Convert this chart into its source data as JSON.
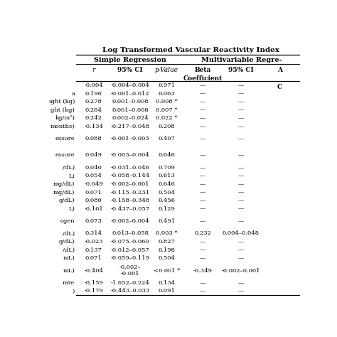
{
  "title": "Log Transformed Vascular Reactivity Index",
  "simple_regression_label": "Simple Regression",
  "multivariable_label": "Multivariable Regre-",
  "col_header_labels": [
    "r",
    "95% CI",
    "p-Value",
    "Beta\nCoefficient",
    "95% CI",
    "A\n\nC"
  ],
  "col_header_italic": [
    true,
    false,
    true,
    false,
    false,
    false
  ],
  "row_labels": [
    "",
    "a",
    "ight (kg)",
    "ght (kg)",
    "kg/m²)",
    "months)",
    "essure",
    "essure",
    "/dL)",
    "L)",
    "mg/dL)",
    "mg/dL)",
    "g/dL)",
    "L)",
    "ogen",
    "/dL)",
    "g/dL)",
    "/dL)",
    "mL)",
    "mL)",
    "rate",
    ")"
  ],
  "rows": [
    [
      "-0.004",
      "-0.004–0.004",
      "0.971",
      "—",
      "—",
      ""
    ],
    [
      "0.196",
      "-0.001–0.012",
      "0.063",
      "—",
      "—",
      ""
    ],
    [
      "0.278",
      "0.001–0.008",
      "0.008 *",
      "—",
      "—",
      ""
    ],
    [
      "0.284",
      "0.001–0.008",
      "0.007 *",
      "—",
      "—",
      ""
    ],
    [
      "0.242",
      "0.002–0.024",
      "0.022 *",
      "—",
      "—",
      ""
    ],
    [
      "-0.134",
      "-0.217–0.048",
      "0.208",
      "—",
      "—",
      ""
    ],
    [
      "0.088",
      "-0.001–0.003",
      "0.407",
      "—",
      "—",
      ""
    ],
    [
      "0.049",
      "-0.003–0.004",
      "0.646",
      "—",
      "—",
      ""
    ],
    [
      "0.040",
      "-0.031–0.046",
      "0.709",
      "—",
      "—",
      ""
    ],
    [
      "0.054",
      "-0.058–0.144",
      "0.613",
      "—",
      "—",
      ""
    ],
    [
      "-0.049",
      "-0.002–0.001",
      "0.646",
      "—",
      "—",
      ""
    ],
    [
      "0.071",
      "-0.115–0.231",
      "0.504",
      "—",
      "—",
      ""
    ],
    [
      "0.080",
      "-0.158–0.348",
      "0.456",
      "—",
      "—",
      ""
    ],
    [
      "-0.161",
      "-0.437–0.057",
      "0.129",
      "—",
      "—",
      ""
    ],
    [
      "0.073",
      "-0.002–0.004",
      "0.491",
      "—",
      "—",
      ""
    ],
    [
      "0.314",
      "0.013–0.058",
      "0.003 *",
      "0.232",
      "0.004–0.048",
      ""
    ],
    [
      "-0.023",
      "-0.075–0.060",
      "0.827",
      "—",
      "—",
      ""
    ],
    [
      "0.137",
      "-0.012–0.057",
      "0.198",
      "—",
      "—",
      ""
    ],
    [
      "0.071",
      "-0.059–0.119",
      "0.504",
      "—",
      "—",
      ""
    ],
    [
      "-0.404",
      "-0.002–\n-0.001",
      "<0.001 *",
      "-0.349",
      "-0.002–0.001",
      ""
    ],
    [
      "-0.159",
      "-1.652–0.224",
      "0.134",
      "—",
      "—",
      ""
    ],
    [
      "-0.179",
      "-0.443–0.033",
      "0.091",
      "—",
      "—",
      ""
    ]
  ],
  "two_line_rows": [
    6,
    7,
    14,
    19
  ],
  "bg_color": "#ffffff",
  "text_color": "#000000",
  "separator_color": "#000000"
}
